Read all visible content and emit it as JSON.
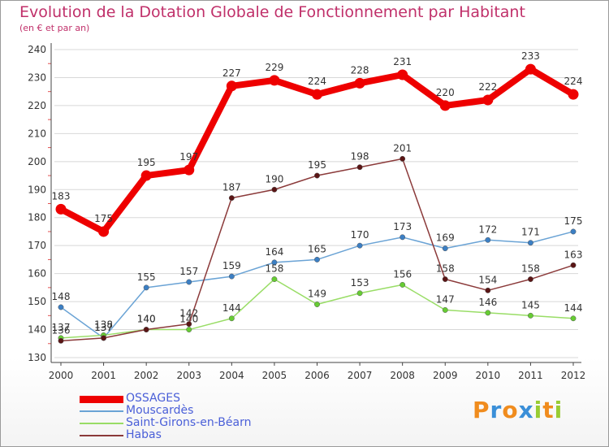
{
  "title": "Evolution de la Dotation Globale de Fonctionnement par Habitant",
  "subtitle": "(en € et par an)",
  "colors": {
    "title": "#c0306a",
    "legend_text": "#4a5fd8",
    "grid": "#d8d8d8",
    "axis": "#444444"
  },
  "chart_data": {
    "type": "line",
    "title": "Evolution de la Dotation Globale de Fonctionnement par Habitant",
    "subtitle": "(en € et par an)",
    "xlabel": "",
    "ylabel": "",
    "ylim": [
      130,
      240
    ],
    "yticks": [
      130,
      140,
      150,
      160,
      170,
      180,
      190,
      200,
      210,
      220,
      230,
      240
    ],
    "x": [
      "2000",
      "2001",
      "2002",
      "2003",
      "2004",
      "2005",
      "2006",
      "2007",
      "2008",
      "2009",
      "2010",
      "2011",
      "2012"
    ],
    "grid": true,
    "legend_position": "bottom-left",
    "series": [
      {
        "name": "OSSAGES",
        "color": "#ee0000",
        "marker": "#ee0000",
        "thick": true,
        "values": [
          183,
          175,
          195,
          197,
          227,
          229,
          224,
          228,
          231,
          220,
          222,
          233,
          224
        ]
      },
      {
        "name": "Mouscardès",
        "color": "#6aa3d5",
        "marker": "#3b7fc4",
        "thick": false,
        "values": [
          148,
          137,
          155,
          157,
          159,
          164,
          165,
          170,
          173,
          169,
          172,
          171,
          175
        ]
      },
      {
        "name": "Saint-Girons-en-Béarn",
        "color": "#99dd66",
        "marker": "#66cc33",
        "thick": false,
        "values": [
          137,
          138,
          140,
          140,
          144,
          158,
          149,
          153,
          156,
          147,
          146,
          145,
          144
        ]
      },
      {
        "name": "Habas",
        "color": "#8b3a3a",
        "marker": "#5a1515",
        "thick": false,
        "values": [
          136,
          137,
          140,
          142,
          187,
          190,
          195,
          198,
          201,
          158,
          154,
          158,
          163
        ]
      }
    ]
  },
  "logo": {
    "letters": [
      "P",
      "r",
      "o",
      "x",
      "i",
      "t",
      "i"
    ],
    "colors": [
      "#f08c1e",
      "#3a8fd8",
      "#f08c1e",
      "#3a8fd8",
      "#99cc33",
      "#f08c1e",
      "#99cc33"
    ]
  }
}
